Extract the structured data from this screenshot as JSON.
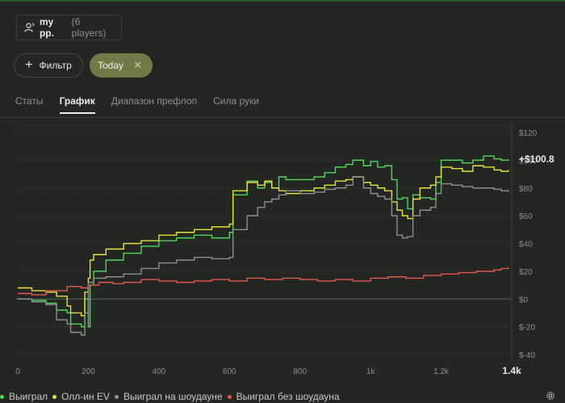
{
  "player": {
    "name": "my pp.",
    "count": "(6 players)"
  },
  "filters": {
    "filter_label": "Фильтр",
    "active_chip": "Today"
  },
  "tabs": [
    {
      "label": "Статы",
      "active": false
    },
    {
      "label": "График",
      "active": true
    },
    {
      "label": "Диапазон префлоп",
      "active": false
    },
    {
      "label": "Сила руки",
      "active": false
    }
  ],
  "colors": {
    "accent": "#707a47",
    "won": "#4fd65b",
    "allin_ev": "#e5e23c",
    "showdown": "#8e8e8e",
    "no_showdown": "#e0574f"
  },
  "chart_data": {
    "type": "line",
    "final_value_label": "+$100.8",
    "xlim": [
      0,
      1400
    ],
    "ylim": [
      -40,
      120
    ],
    "x_ticks": [
      {
        "value": 0,
        "label": "0",
        "bold": false
      },
      {
        "value": 200,
        "label": "200",
        "bold": false
      },
      {
        "value": 400,
        "label": "400",
        "bold": false
      },
      {
        "value": 600,
        "label": "600",
        "bold": false
      },
      {
        "value": 800,
        "label": "800",
        "bold": false
      },
      {
        "value": 1000,
        "label": "1k",
        "bold": false
      },
      {
        "value": 1200,
        "label": "1.2k",
        "bold": false
      },
      {
        "value": 1400,
        "label": "1.4k",
        "bold": true
      }
    ],
    "y_ticks": [
      {
        "value": 120,
        "label": "$120"
      },
      {
        "value": 100,
        "label": "$100"
      },
      {
        "value": 80,
        "label": "$80"
      },
      {
        "value": 60,
        "label": "$60"
      },
      {
        "value": 40,
        "label": "$40"
      },
      {
        "value": 20,
        "label": "$20"
      },
      {
        "value": 0,
        "label": "$0"
      },
      {
        "value": -20,
        "label": "$-20"
      },
      {
        "value": -40,
        "label": "$-40"
      }
    ],
    "grid": true,
    "legend_position": "bottom-left",
    "series": [
      {
        "name": "Выиграл",
        "color": "#4fd65b",
        "points": [
          [
            0,
            0
          ],
          [
            40,
            -1
          ],
          [
            80,
            -3
          ],
          [
            110,
            -8
          ],
          [
            140,
            -10
          ],
          [
            150,
            -18
          ],
          [
            180,
            -20
          ],
          [
            190,
            0
          ],
          [
            200,
            -20
          ],
          [
            205,
            10
          ],
          [
            215,
            20
          ],
          [
            250,
            28
          ],
          [
            300,
            33
          ],
          [
            350,
            38
          ],
          [
            400,
            42
          ],
          [
            450,
            44
          ],
          [
            500,
            46
          ],
          [
            550,
            44
          ],
          [
            600,
            48
          ],
          [
            610,
            75
          ],
          [
            650,
            85
          ],
          [
            680,
            80
          ],
          [
            700,
            84
          ],
          [
            720,
            80
          ],
          [
            740,
            88
          ],
          [
            760,
            86
          ],
          [
            800,
            86
          ],
          [
            840,
            88
          ],
          [
            870,
            91
          ],
          [
            900,
            95
          ],
          [
            930,
            97
          ],
          [
            950,
            100
          ],
          [
            980,
            96
          ],
          [
            1000,
            99
          ],
          [
            1020,
            95
          ],
          [
            1040,
            96
          ],
          [
            1060,
            86
          ],
          [
            1075,
            72
          ],
          [
            1090,
            73
          ],
          [
            1105,
            65
          ],
          [
            1120,
            75
          ],
          [
            1140,
            73
          ],
          [
            1170,
            72
          ],
          [
            1185,
            84
          ],
          [
            1200,
            100
          ],
          [
            1230,
            100
          ],
          [
            1260,
            98
          ],
          [
            1290,
            100
          ],
          [
            1320,
            103
          ],
          [
            1350,
            101
          ],
          [
            1370,
            100
          ],
          [
            1390,
            100.8
          ]
        ]
      },
      {
        "name": "Олл-ин EV",
        "color": "#e5e23c",
        "points": [
          [
            0,
            8
          ],
          [
            40,
            6
          ],
          [
            80,
            5
          ],
          [
            110,
            2
          ],
          [
            140,
            -5
          ],
          [
            150,
            -10
          ],
          [
            180,
            -12
          ],
          [
            190,
            5
          ],
          [
            200,
            15
          ],
          [
            205,
            28
          ],
          [
            215,
            32
          ],
          [
            250,
            36
          ],
          [
            300,
            40
          ],
          [
            350,
            42
          ],
          [
            400,
            46
          ],
          [
            450,
            48
          ],
          [
            500,
            50
          ],
          [
            550,
            52
          ],
          [
            600,
            54
          ],
          [
            610,
            78
          ],
          [
            650,
            84
          ],
          [
            680,
            82
          ],
          [
            700,
            85
          ],
          [
            720,
            80
          ],
          [
            740,
            78
          ],
          [
            760,
            76
          ],
          [
            800,
            78
          ],
          [
            840,
            80
          ],
          [
            870,
            82
          ],
          [
            900,
            85
          ],
          [
            930,
            86
          ],
          [
            950,
            88
          ],
          [
            980,
            84
          ],
          [
            1000,
            82
          ],
          [
            1020,
            80
          ],
          [
            1040,
            78
          ],
          [
            1060,
            70
          ],
          [
            1075,
            64
          ],
          [
            1090,
            60
          ],
          [
            1105,
            58
          ],
          [
            1120,
            72
          ],
          [
            1140,
            80
          ],
          [
            1170,
            82
          ],
          [
            1185,
            88
          ],
          [
            1200,
            95
          ],
          [
            1230,
            94
          ],
          [
            1260,
            92
          ],
          [
            1290,
            96
          ],
          [
            1320,
            95
          ],
          [
            1350,
            93
          ],
          [
            1370,
            92
          ],
          [
            1390,
            93
          ]
        ]
      },
      {
        "name": "Выиграл на шоудауне",
        "color": "#8e8e8e",
        "points": [
          [
            0,
            0
          ],
          [
            40,
            -2
          ],
          [
            80,
            -4
          ],
          [
            110,
            -15
          ],
          [
            140,
            -18
          ],
          [
            150,
            -24
          ],
          [
            180,
            -26
          ],
          [
            190,
            -10
          ],
          [
            200,
            12
          ],
          [
            215,
            15
          ],
          [
            250,
            16
          ],
          [
            300,
            18
          ],
          [
            350,
            22
          ],
          [
            400,
            26
          ],
          [
            450,
            28
          ],
          [
            500,
            30
          ],
          [
            550,
            29
          ],
          [
            600,
            30
          ],
          [
            610,
            50
          ],
          [
            650,
            60
          ],
          [
            680,
            66
          ],
          [
            700,
            70
          ],
          [
            720,
            72
          ],
          [
            740,
            75
          ],
          [
            760,
            78
          ],
          [
            800,
            76
          ],
          [
            840,
            77
          ],
          [
            870,
            79
          ],
          [
            900,
            80
          ],
          [
            930,
            82
          ],
          [
            950,
            88
          ],
          [
            980,
            80
          ],
          [
            1000,
            76
          ],
          [
            1020,
            74
          ],
          [
            1040,
            72
          ],
          [
            1060,
            60
          ],
          [
            1075,
            46
          ],
          [
            1090,
            44
          ],
          [
            1105,
            45
          ],
          [
            1120,
            60
          ],
          [
            1140,
            64
          ],
          [
            1170,
            66
          ],
          [
            1185,
            76
          ],
          [
            1200,
            83
          ],
          [
            1230,
            82
          ],
          [
            1260,
            81
          ],
          [
            1290,
            80
          ],
          [
            1320,
            80
          ],
          [
            1350,
            79
          ],
          [
            1370,
            78
          ],
          [
            1390,
            77
          ]
        ]
      },
      {
        "name": "Выиграл без шоудауна",
        "color": "#e0574f",
        "points": [
          [
            0,
            4
          ],
          [
            40,
            3
          ],
          [
            80,
            6
          ],
          [
            110,
            6
          ],
          [
            140,
            9
          ],
          [
            180,
            8
          ],
          [
            200,
            10
          ],
          [
            230,
            12
          ],
          [
            270,
            11
          ],
          [
            300,
            12
          ],
          [
            350,
            14
          ],
          [
            400,
            13
          ],
          [
            450,
            12
          ],
          [
            500,
            13
          ],
          [
            550,
            14
          ],
          [
            600,
            13
          ],
          [
            650,
            15
          ],
          [
            700,
            14
          ],
          [
            750,
            15
          ],
          [
            800,
            14
          ],
          [
            850,
            13
          ],
          [
            900,
            14
          ],
          [
            950,
            13
          ],
          [
            1000,
            15
          ],
          [
            1050,
            16
          ],
          [
            1100,
            15
          ],
          [
            1150,
            17
          ],
          [
            1200,
            18
          ],
          [
            1250,
            19
          ],
          [
            1300,
            20
          ],
          [
            1350,
            21
          ],
          [
            1370,
            22
          ],
          [
            1390,
            23
          ]
        ]
      }
    ]
  }
}
